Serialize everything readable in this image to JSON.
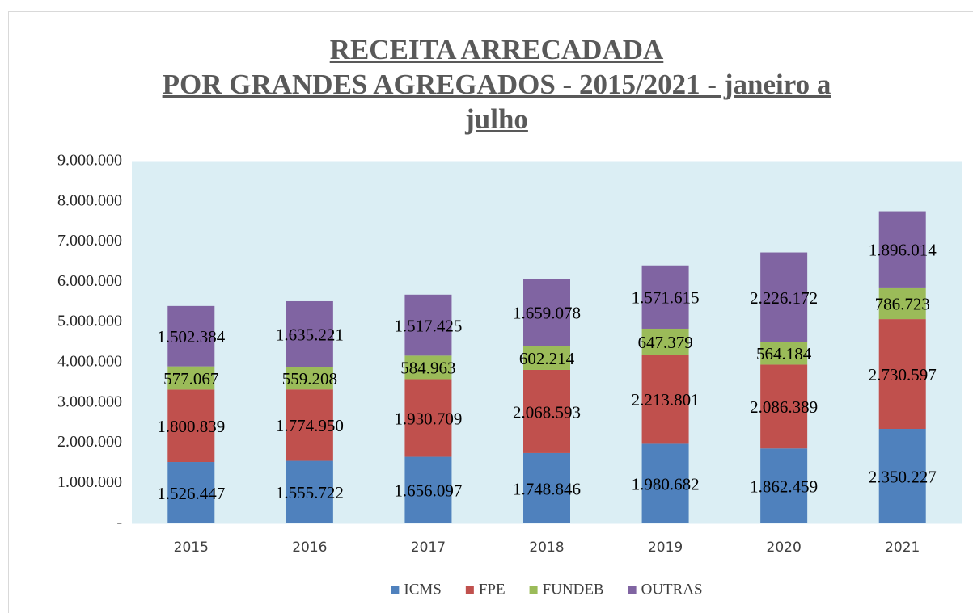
{
  "chart_data": {
    "type": "stacked_bar",
    "title": [
      "RECEITA ARRECADADA",
      "POR GRANDES AGREGADOS - 2015/2021 - janeiro a julho"
    ],
    "categories": [
      "2015",
      "2016",
      "2017",
      "2018",
      "2019",
      "2020",
      "2021"
    ],
    "series": [
      {
        "name": "ICMS",
        "color": "#4f81bd",
        "values": [
          1526447,
          1555722,
          1656097,
          1748846,
          1980682,
          1862459,
          2350227
        ],
        "value_labels": [
          "1.526.447",
          "1.555.722",
          "1.656.097",
          "1.748.846",
          "1.980.682",
          "1.862.459",
          "2.350.227"
        ]
      },
      {
        "name": "FPE",
        "color": "#c0504d",
        "values": [
          1800839,
          1774950,
          1930709,
          2068593,
          2213801,
          2086389,
          2730597
        ],
        "value_labels": [
          "1.800.839",
          "1.774.950",
          "1.930.709",
          "2.068.593",
          "2.213.801",
          "2.086.389",
          "2.730.597"
        ]
      },
      {
        "name": "FUNDEB",
        "color": "#9bbb59",
        "values": [
          577067,
          559208,
          584963,
          602214,
          647379,
          564184,
          786723
        ],
        "value_labels": [
          "577.067",
          "559.208",
          "584.963",
          "602.214",
          "647.379",
          "564.184",
          "786.723"
        ]
      },
      {
        "name": "OUTRAS",
        "color": "#8064a2",
        "values": [
          1502384,
          1635221,
          1517425,
          1659078,
          1571615,
          2226172,
          1896014
        ],
        "value_labels": [
          "1.502.384",
          "1.635.221",
          "1.517.425",
          "1.659.078",
          "1.571.615",
          "2.226.172",
          "1.896.014"
        ]
      }
    ],
    "ylim": [
      0,
      9000000
    ],
    "yticks": [
      {
        "value": 0,
        "label": "-"
      },
      {
        "value": 1000000,
        "label": "1.000.000"
      },
      {
        "value": 2000000,
        "label": "2.000.000"
      },
      {
        "value": 3000000,
        "label": "3.000.000"
      },
      {
        "value": 4000000,
        "label": "4.000.000"
      },
      {
        "value": 5000000,
        "label": "5.000.000"
      },
      {
        "value": 6000000,
        "label": "6.000.000"
      },
      {
        "value": 7000000,
        "label": "7.000.000"
      },
      {
        "value": 8000000,
        "label": "8.000.000"
      },
      {
        "value": 9000000,
        "label": "9.000.000"
      }
    ],
    "grid": true,
    "legend": "bottom",
    "plot_background": "#dbeef4"
  }
}
